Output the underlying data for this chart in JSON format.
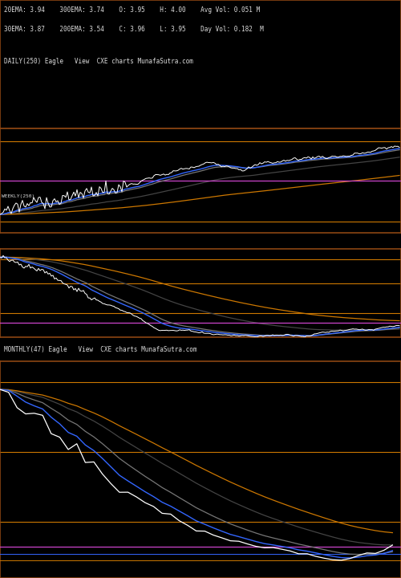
{
  "background_color": "#000000",
  "text_color": "#dddddd",
  "title_info_line1": "20EMA: 3.94    300EMA: 3.74    O: 3.95    H: 4.00    Avg Vol: 0.051 M",
  "title_info_line2": "30EMA: 3.87    200EMA: 3.54    C: 3.96    L: 3.95    Day Vol: 0.182  M",
  "daily_label": "DAILY(250) Eagle   View  CXE charts MunafaSutra.com",
  "weekly_label": "WEEKLY(250)",
  "monthly_label": "MONTHLY(47) Eagle   View  CXE charts MunafaSutra.com",
  "panel_border_color": "#8B4513",
  "orange_line_color": "#CC7700",
  "magenta_line_color": "#CC44CC",
  "blue_line_color": "#3366FF",
  "gray_line_color": "#777777",
  "dark_gray_line_color": "#444444",
  "white_line_color": "#FFFFFF",
  "red_line_color": "#FF0000",
  "label_fontsize": 5.5,
  "tick_label_color": "#aaaaaa",
  "tick_fontsize": 6
}
